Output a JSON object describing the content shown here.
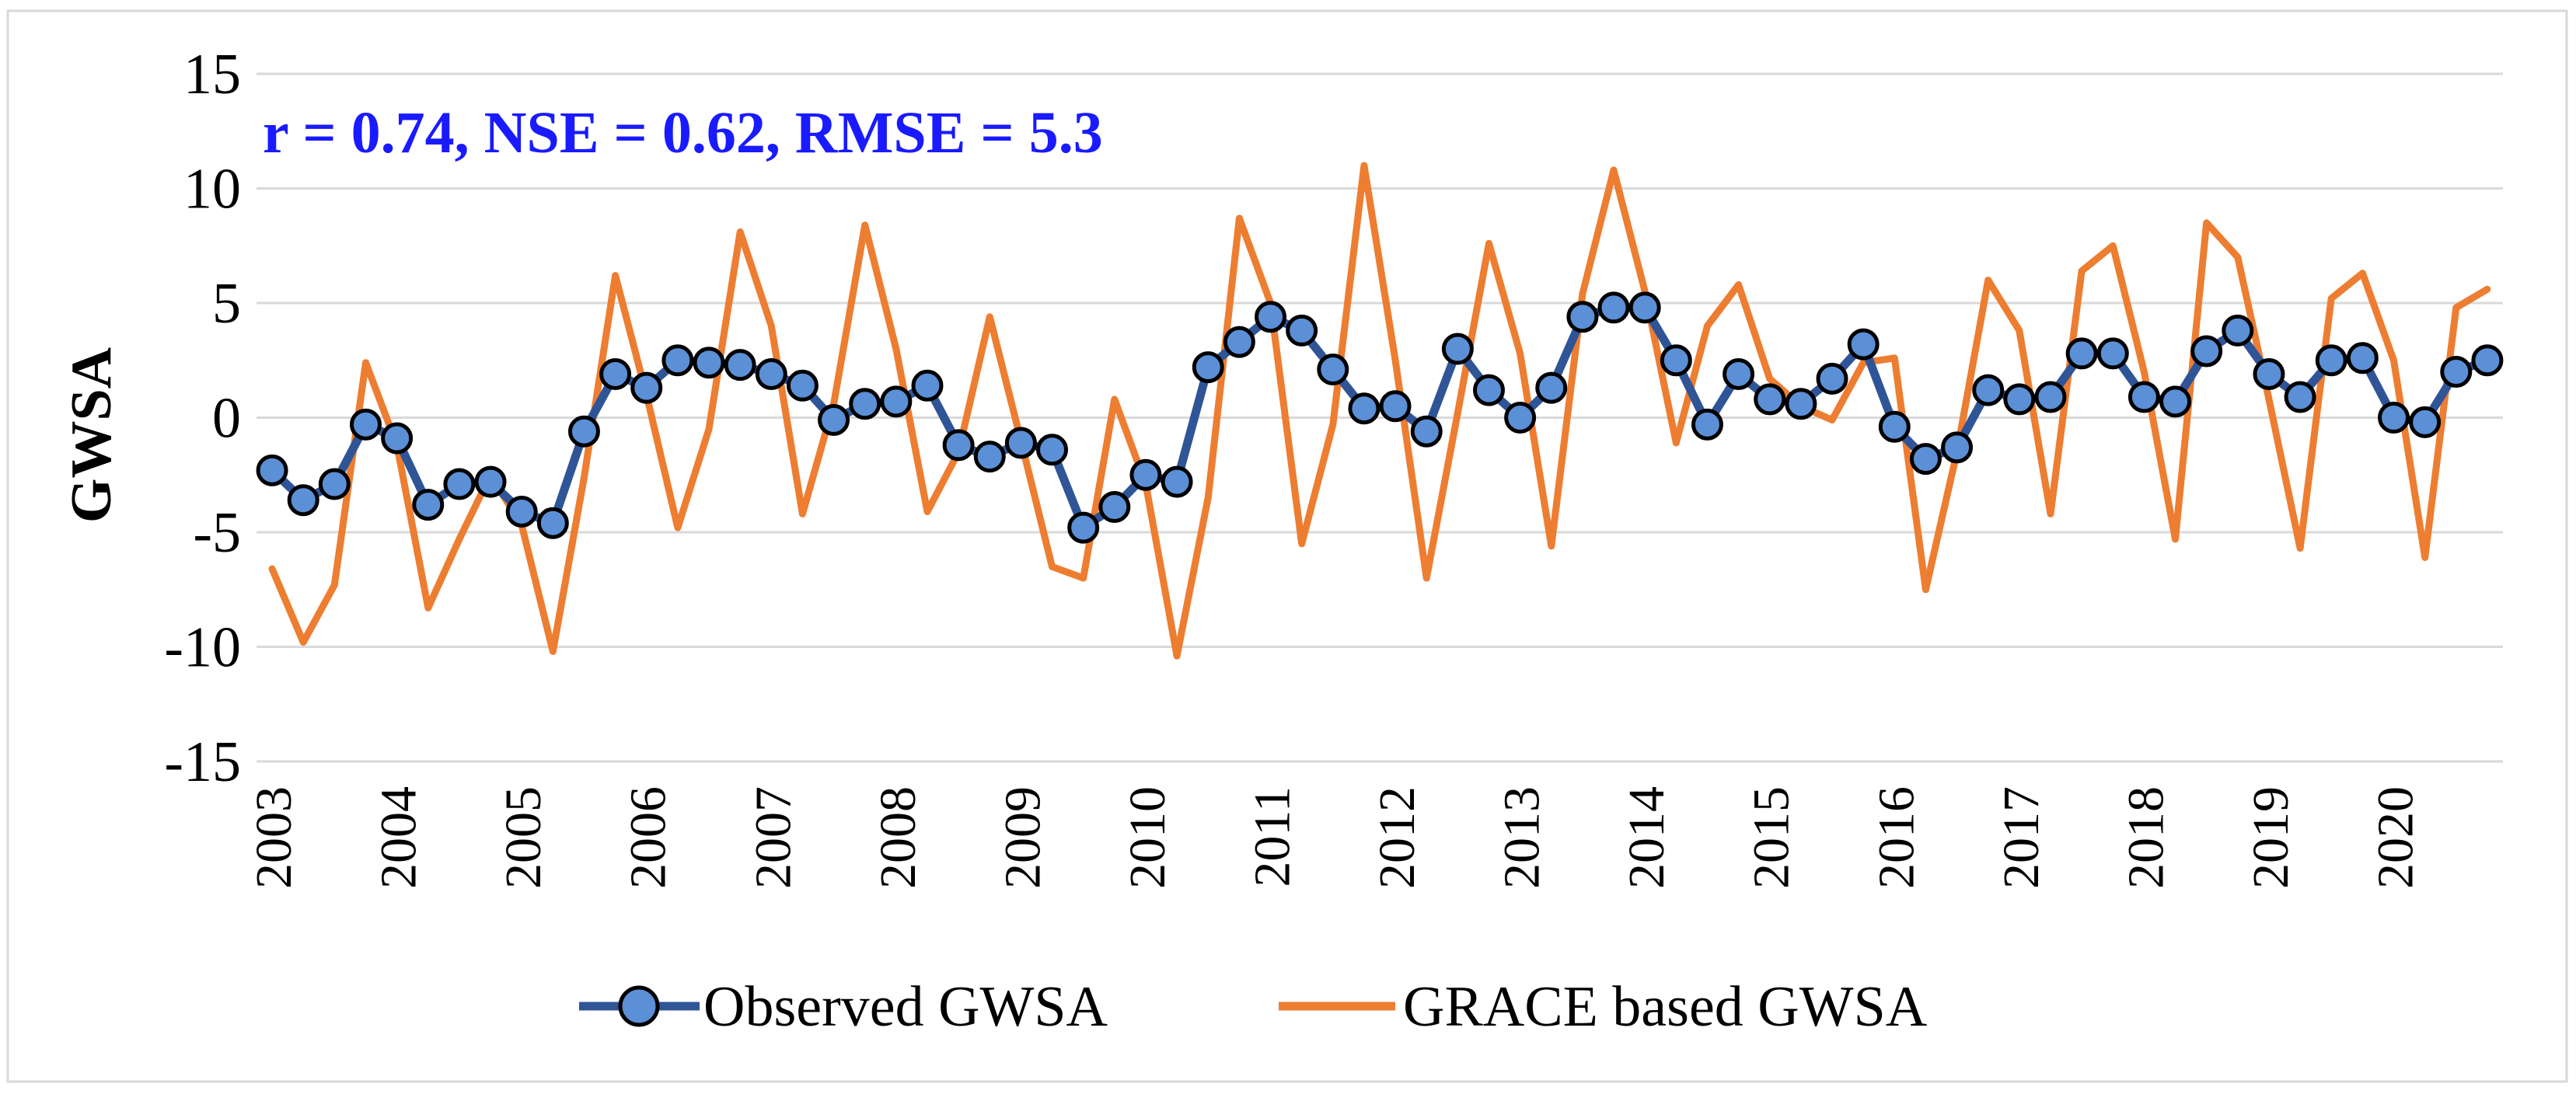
{
  "chart_data": {
    "type": "line",
    "title": "",
    "xlabel": "",
    "ylabel": "GWSA",
    "ylim": [
      -15,
      15
    ],
    "yticks": [
      15,
      10,
      5,
      0,
      -5,
      -10,
      -15
    ],
    "x_start": 2003,
    "points_per_year": 4,
    "x_tick_labels": [
      "2003",
      "2004",
      "2005",
      "2006",
      "2007",
      "2008",
      "2009",
      "2010",
      "2011",
      "2012",
      "2013",
      "2014",
      "2015",
      "2016",
      "2017",
      "2018",
      "2019",
      "2020"
    ],
    "grid": true,
    "legend_position": "bottom",
    "annotation": "r = 0.74, NSE = 0.62, RMSE = 5.3",
    "series": [
      {
        "name": "Observed GWSA",
        "color": "#2F5597",
        "marker_color": "#5B8FD6",
        "marker": "circle",
        "values": [
          -2.3,
          -3.6,
          -2.9,
          -0.3,
          -0.9,
          -3.8,
          -2.9,
          -2.8,
          -4.1,
          -4.6,
          -0.6,
          1.9,
          1.3,
          2.5,
          2.4,
          2.3,
          1.9,
          1.4,
          -0.1,
          0.6,
          0.7,
          1.4,
          -1.2,
          -1.7,
          -1.1,
          -1.4,
          -4.8,
          -3.9,
          -2.5,
          -2.8,
          2.2,
          3.3,
          4.4,
          3.8,
          2.1,
          0.4,
          0.5,
          -0.6,
          3.0,
          1.2,
          0.0,
          1.3,
          4.4,
          4.8,
          4.8,
          2.5,
          -0.3,
          1.9,
          0.8,
          0.6,
          1.7,
          3.2,
          -0.4,
          -1.8,
          -1.3,
          1.2,
          0.8,
          0.9,
          2.8,
          2.8,
          0.9,
          0.7,
          2.9,
          3.8,
          1.9,
          0.9,
          2.5,
          2.6,
          0.0,
          -0.2,
          2.0,
          2.5
        ]
      },
      {
        "name": "GRACE based GWSA",
        "color": "#ED7D31",
        "values": [
          -6.6,
          -9.8,
          -7.3,
          2.4,
          -1.2,
          -8.3,
          -5.3,
          -2.5,
          -4.7,
          -10.2,
          -2.6,
          6.2,
          1.0,
          -4.8,
          -0.5,
          8.1,
          4.0,
          -4.2,
          0.6,
          8.4,
          3.0,
          -4.1,
          -1.5,
          4.4,
          -1.0,
          -6.5,
          -7.0,
          0.8,
          -2.9,
          -10.4,
          -3.5,
          8.7,
          5.0,
          -5.5,
          -0.3,
          11.0,
          2.5,
          -7.0,
          0.2,
          7.6,
          2.8,
          -5.6,
          5.4,
          10.8,
          5.5,
          -1.1,
          4.0,
          5.8,
          1.7,
          0.5,
          -0.1,
          2.4,
          2.6,
          -7.5,
          -1.5,
          6.0,
          3.8,
          -4.2,
          6.4,
          7.5,
          2.0,
          -5.3,
          8.5,
          7.0,
          0.8,
          -5.7,
          5.2,
          6.3,
          2.5,
          -6.1,
          4.8,
          5.6
        ]
      }
    ]
  }
}
